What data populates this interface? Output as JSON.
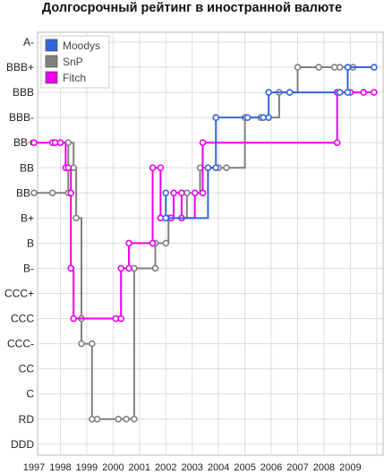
{
  "chart_data": {
    "type": "line",
    "step": true,
    "title": "Долгосрочный рейтинг в иностранной валюте",
    "xlabel": "",
    "ylabel": "",
    "x_ticks": [
      "1997",
      "1998",
      "1999",
      "2000",
      "2001",
      "2002",
      "2003",
      "2004",
      "2005",
      "2006",
      "2007",
      "2008",
      "2009"
    ],
    "xlim": [
      1997,
      2010
    ],
    "y_categories": [
      "A-",
      "BBB+",
      "BBB",
      "BBB-",
      "BB+",
      "BB",
      "BB-",
      "B+",
      "B",
      "B-",
      "CCC+",
      "CCC",
      "CCC-",
      "CC",
      "C",
      "RD",
      "DDD"
    ],
    "grid": true,
    "legend_position": "top-left",
    "series": [
      {
        "name": "Moodys",
        "color": "#3366dd",
        "points": [
          {
            "x": 2002.0,
            "y": "BB-"
          },
          {
            "x": 2002.0,
            "y": "B+"
          },
          {
            "x": 2003.6,
            "y": "BB"
          },
          {
            "x": 2003.9,
            "y": "BB"
          },
          {
            "x": 2003.9,
            "y": "BBB-"
          },
          {
            "x": 2005.1,
            "y": "BBB-"
          },
          {
            "x": 2005.7,
            "y": "BBB-"
          },
          {
            "x": 2005.9,
            "y": "BBB-"
          },
          {
            "x": 2005.9,
            "y": "BBB"
          },
          {
            "x": 2006.7,
            "y": "BBB"
          },
          {
            "x": 2008.6,
            "y": "BBB"
          },
          {
            "x": 2008.9,
            "y": "BBB"
          },
          {
            "x": 2008.9,
            "y": "BBB+"
          },
          {
            "x": 2009.9,
            "y": "BBB+"
          }
        ]
      },
      {
        "name": "SnP",
        "color": "#808080",
        "points": [
          {
            "x": 1997.0,
            "y": "BB-"
          },
          {
            "x": 1997.7,
            "y": "BB-"
          },
          {
            "x": 1998.3,
            "y": "BB-"
          },
          {
            "x": 1998.3,
            "y": "BB+"
          },
          {
            "x": 1998.5,
            "y": "BB"
          },
          {
            "x": 1998.6,
            "y": "B+"
          },
          {
            "x": 1998.8,
            "y": "CCC"
          },
          {
            "x": 1998.8,
            "y": "CCC-"
          },
          {
            "x": 1999.2,
            "y": "CCC-"
          },
          {
            "x": 1999.2,
            "y": "RD"
          },
          {
            "x": 1999.4,
            "y": "RD"
          },
          {
            "x": 2000.2,
            "y": "RD"
          },
          {
            "x": 2000.5,
            "y": "RD"
          },
          {
            "x": 2000.8,
            "y": "RD"
          },
          {
            "x": 2000.8,
            "y": "B-"
          },
          {
            "x": 2001.6,
            "y": "B-"
          },
          {
            "x": 2001.6,
            "y": "B"
          },
          {
            "x": 2002.0,
            "y": "B"
          },
          {
            "x": 2002.1,
            "y": "B+"
          },
          {
            "x": 2002.8,
            "y": "BB-"
          },
          {
            "x": 2003.3,
            "y": "BB"
          },
          {
            "x": 2003.6,
            "y": "BB"
          },
          {
            "x": 2004.0,
            "y": "BB"
          },
          {
            "x": 2004.3,
            "y": "BB"
          },
          {
            "x": 2005.0,
            "y": "BBB-"
          },
          {
            "x": 2005.6,
            "y": "BBB-"
          },
          {
            "x": 2006.3,
            "y": "BBB"
          },
          {
            "x": 2006.7,
            "y": "BBB"
          },
          {
            "x": 2007.0,
            "y": "BBB+"
          },
          {
            "x": 2007.8,
            "y": "BBB+"
          },
          {
            "x": 2008.4,
            "y": "BBB+"
          },
          {
            "x": 2008.6,
            "y": "BBB+"
          },
          {
            "x": 2008.9,
            "y": "BBB+"
          },
          {
            "x": 2009.1,
            "y": "BBB+"
          }
        ]
      },
      {
        "name": "Fitch",
        "color": "#ee00ee",
        "points": [
          {
            "x": 1997.0,
            "y": "BB+"
          },
          {
            "x": 1997.7,
            "y": "BB+"
          },
          {
            "x": 1997.8,
            "y": "BB+"
          },
          {
            "x": 1998.0,
            "y": "BB+"
          },
          {
            "x": 1998.2,
            "y": "BB"
          },
          {
            "x": 1998.3,
            "y": "BB"
          },
          {
            "x": 1998.4,
            "y": "BB-"
          },
          {
            "x": 1998.4,
            "y": "B-"
          },
          {
            "x": 1998.5,
            "y": "CCC"
          },
          {
            "x": 2000.1,
            "y": "CCC"
          },
          {
            "x": 2000.3,
            "y": "CCC"
          },
          {
            "x": 2000.3,
            "y": "B-"
          },
          {
            "x": 2000.6,
            "y": "B-"
          },
          {
            "x": 2000.6,
            "y": "B"
          },
          {
            "x": 2001.5,
            "y": "B"
          },
          {
            "x": 2001.5,
            "y": "BB"
          },
          {
            "x": 2001.8,
            "y": "BB"
          },
          {
            "x": 2001.8,
            "y": "B+"
          },
          {
            "x": 2002.2,
            "y": "B+"
          },
          {
            "x": 2002.3,
            "y": "BB-"
          },
          {
            "x": 2002.6,
            "y": "BB-"
          },
          {
            "x": 2002.6,
            "y": "B+"
          },
          {
            "x": 2003.1,
            "y": "BB-"
          },
          {
            "x": 2003.4,
            "y": "BB-"
          },
          {
            "x": 2003.4,
            "y": "BB+"
          },
          {
            "x": 2008.5,
            "y": "BB+"
          },
          {
            "x": 2008.5,
            "y": "BBB"
          },
          {
            "x": 2009.0,
            "y": "BBB"
          },
          {
            "x": 2009.5,
            "y": "BBB"
          },
          {
            "x": 2009.9,
            "y": "BBB"
          }
        ]
      }
    ]
  }
}
